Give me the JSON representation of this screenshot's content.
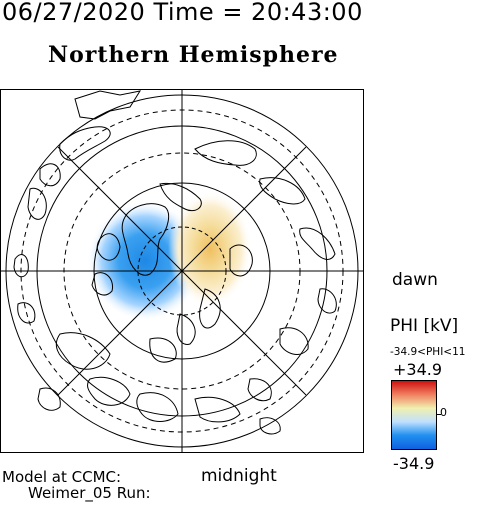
{
  "header": {
    "timestamp": "06/27/2020 Time = 20:43:00",
    "title": "Northern Hemisphere"
  },
  "map": {
    "projection": "north-polar",
    "dawn_label": "dawn",
    "midnight_label": "midnight",
    "grid_lines": "solid and dashed latitude circles, noon-midnight, dawn-dusk and diagonal meridians",
    "potential_cells": [
      {
        "sign": "negative",
        "color": "#1e88e5"
      },
      {
        "sign": "positive",
        "color": "#f0c060"
      }
    ]
  },
  "colorbar": {
    "label": "PHI [kV]",
    "range_text": "-34.9<PHI<11",
    "max_label": "+34.9",
    "zero_label": "0",
    "min_label": "-34.9",
    "colors": [
      "#d01010",
      "#f08060",
      "#f0f0b0",
      "#c0e0ff",
      "#2090f0",
      "#1060e0"
    ]
  },
  "footer": {
    "model_line": "Model at CCMC:",
    "run_line": "Weimer_05 Run:"
  }
}
